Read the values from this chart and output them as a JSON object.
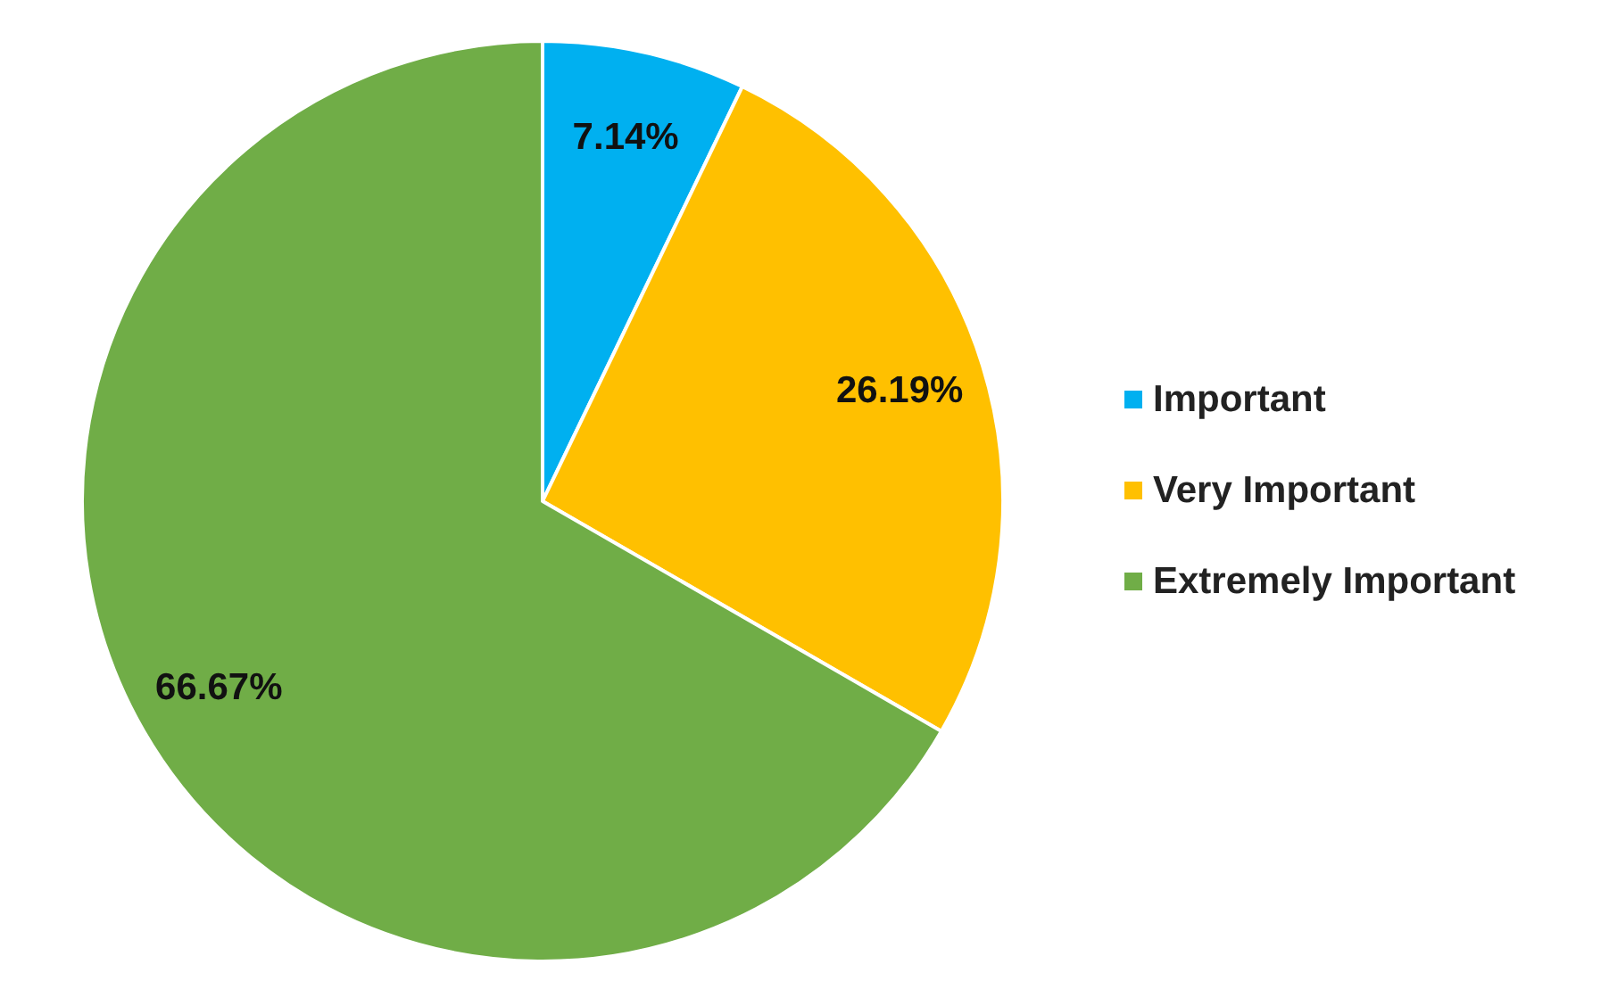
{
  "chart_data": {
    "type": "pie",
    "categories": [
      "Important",
      "Very Important",
      "Extremely Important"
    ],
    "values": [
      7.14,
      26.19,
      66.67
    ],
    "colors": [
      "#00b0f0",
      "#ffc000",
      "#70ad47"
    ],
    "value_labels": [
      "7.14%",
      "26.19%",
      "66.67%"
    ],
    "legend": "right"
  }
}
